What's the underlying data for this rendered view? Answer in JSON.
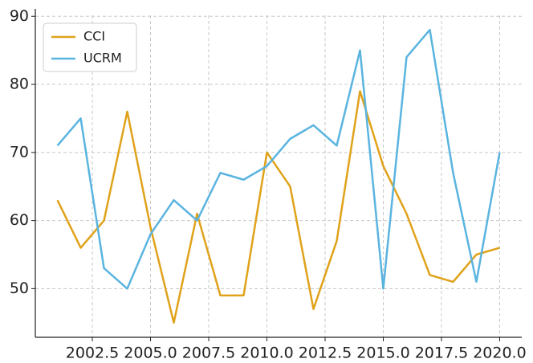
{
  "chart_data": {
    "type": "line",
    "x": [
      2001,
      2002,
      2003,
      2004,
      2005,
      2006,
      2007,
      2008,
      2009,
      2010,
      2011,
      2012,
      2013,
      2014,
      2015,
      2016,
      2017,
      2018,
      2019,
      2020
    ],
    "series": [
      {
        "name": "CCI",
        "color": "#e0a21a",
        "values": [
          63,
          56,
          60,
          76,
          59,
          45,
          61,
          49,
          49,
          70,
          65,
          47,
          57,
          79,
          68,
          61,
          52,
          51,
          55,
          56
        ]
      },
      {
        "name": "UCRM",
        "color": "#5ab4e0",
        "values": [
          71,
          75,
          53,
          50,
          58,
          63,
          60,
          67,
          66,
          68,
          72,
          74,
          71,
          85,
          50,
          84,
          88,
          67,
          51,
          70
        ]
      }
    ],
    "xlim": [
      2000.05,
      2020.95
    ],
    "xticks": [
      2002.5,
      {
        "value": 2005,
        "label": "2005.0"
      },
      2007.5,
      {
        "value": 2010,
        "label": "2010.0"
      },
      2012.5,
      {
        "value": 2015,
        "label": "2015.0"
      },
      2017.5,
      {
        "value": 2020,
        "label": "2020.0"
      }
    ],
    "ylim": [
      42.85,
      90.15
    ],
    "yticks": [
      50,
      60,
      70,
      80,
      90
    ],
    "grid": true,
    "legend": "upper left"
  }
}
